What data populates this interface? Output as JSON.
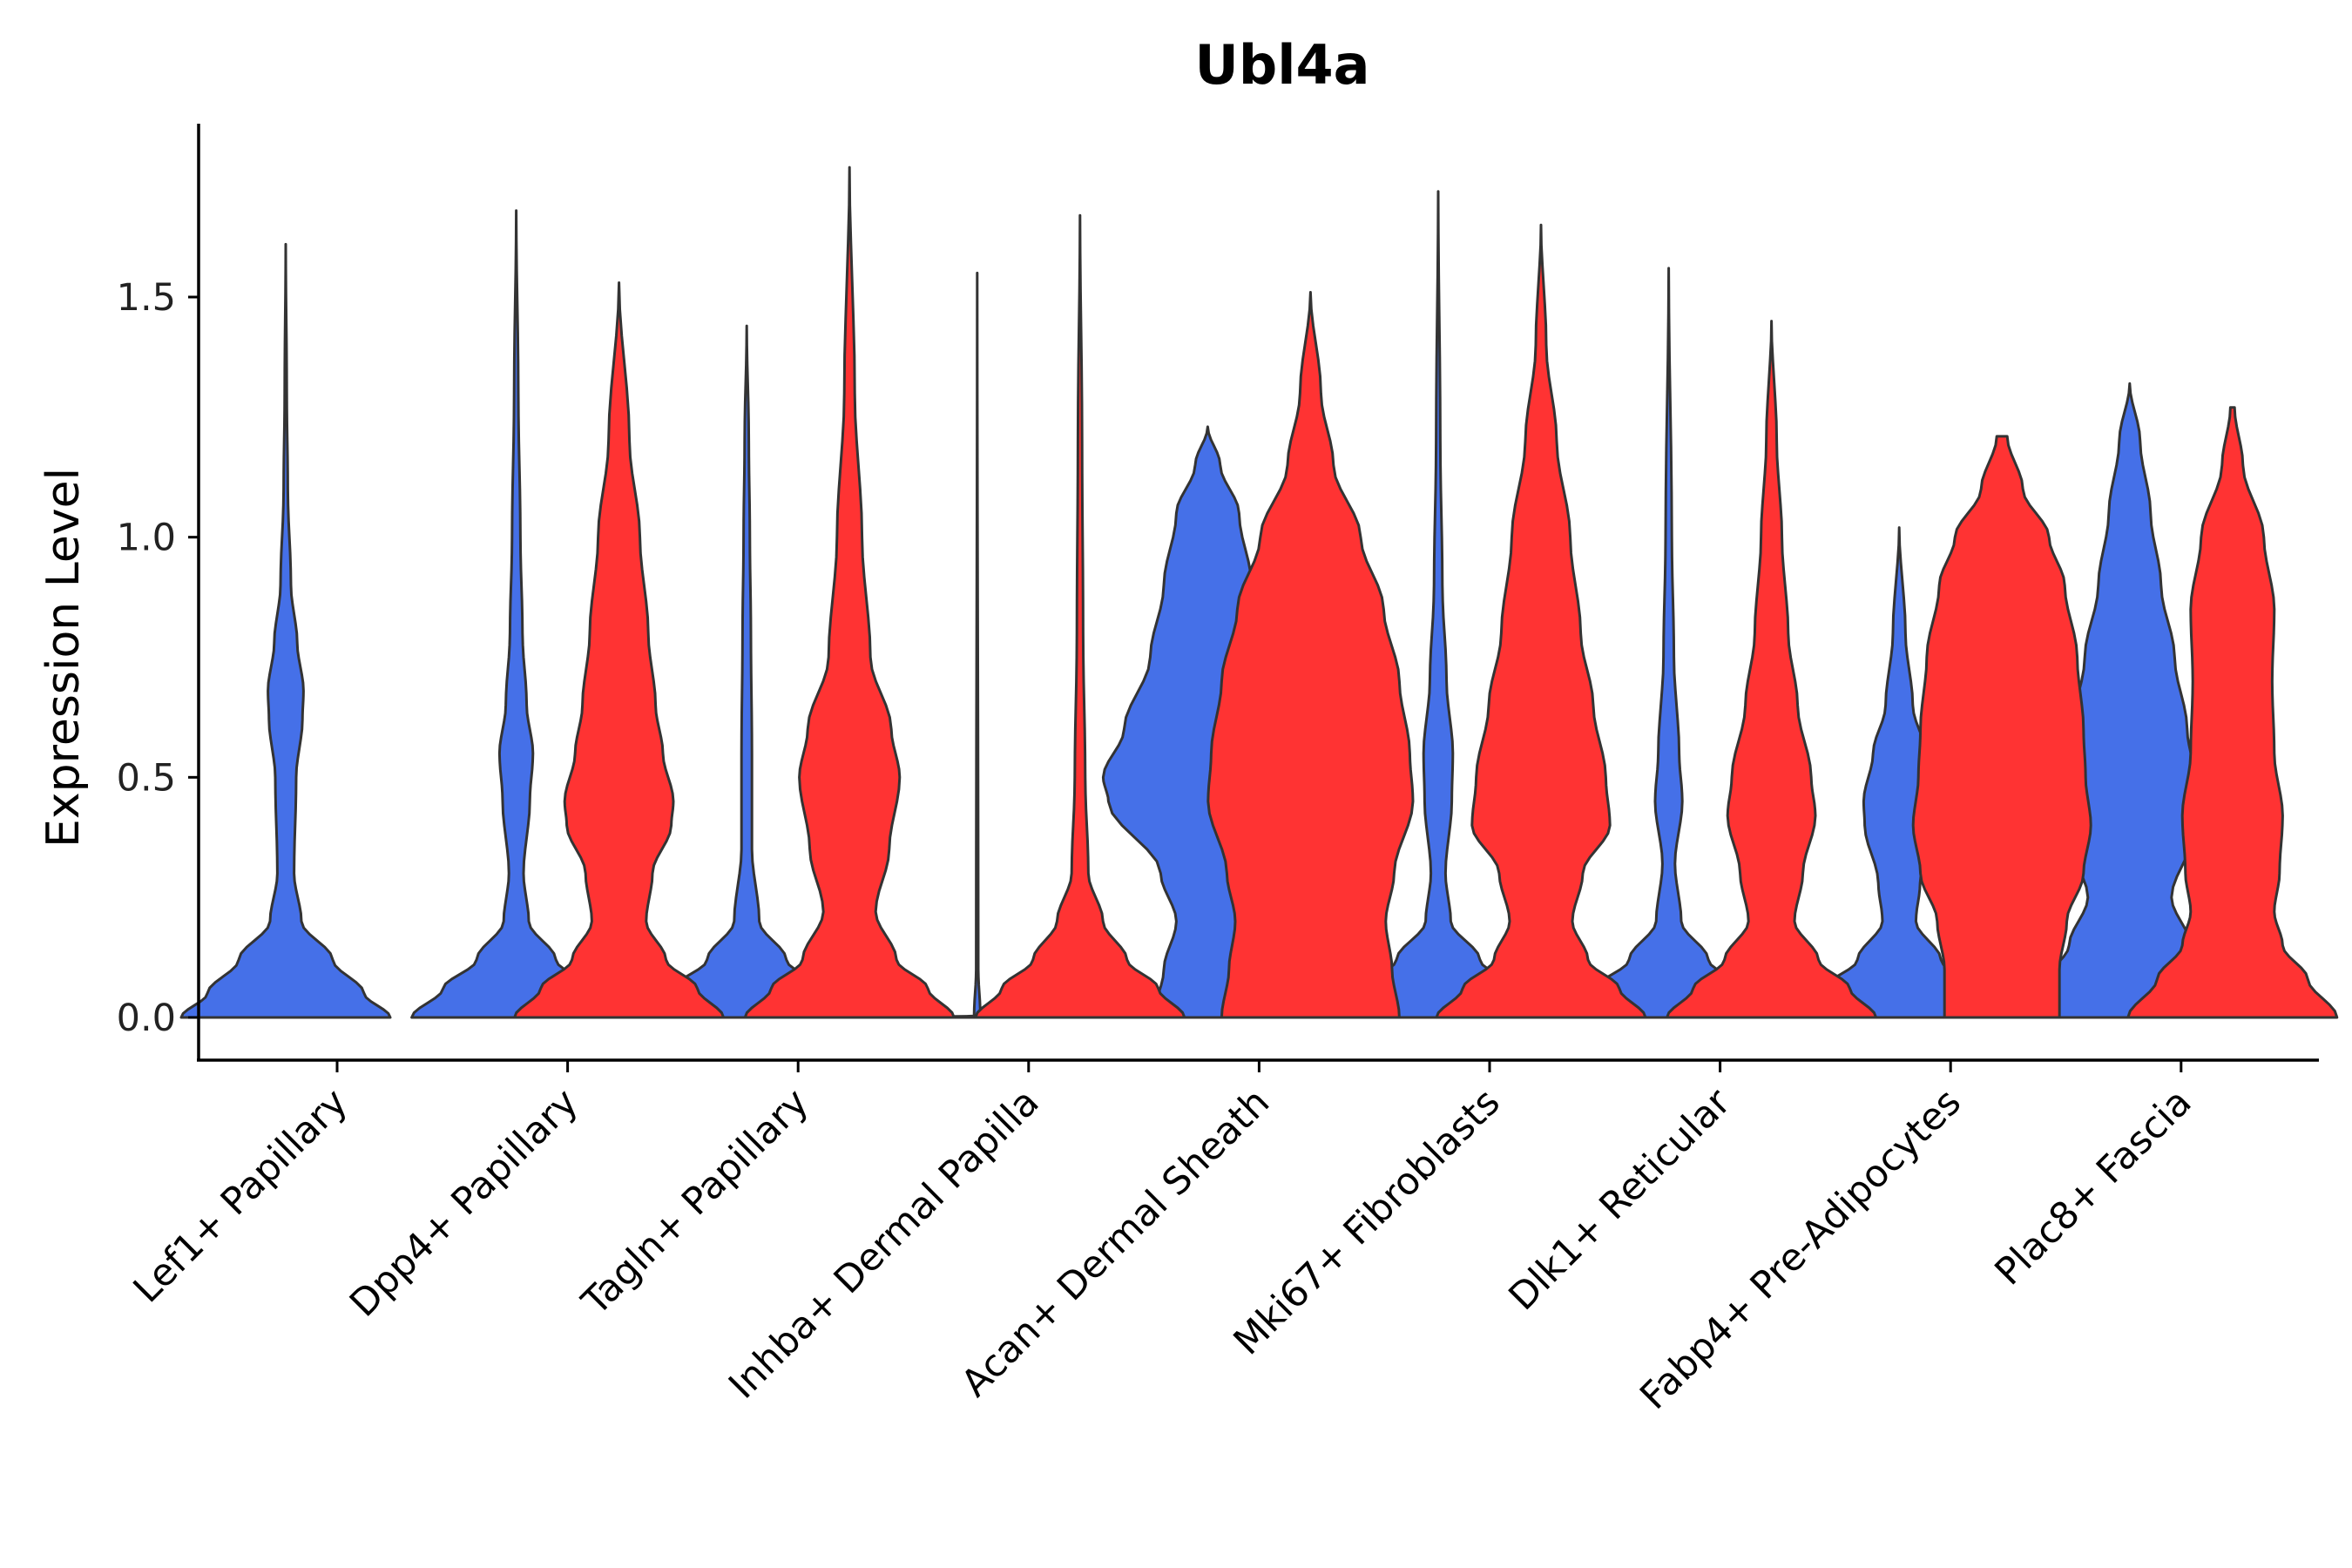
{
  "chart_data": {
    "type": "violin",
    "title": "Ubl4a",
    "xlabel": "",
    "ylabel": "Expression Level",
    "ylim": [
      -0.09,
      1.86
    ],
    "yticks": [
      0.0,
      0.5,
      1.0,
      1.5
    ],
    "ytick_labels": [
      "0.0",
      "0.5",
      "1.0",
      "1.5"
    ],
    "grid": false,
    "legend": "none",
    "colors": {
      "group1": "#4570E8",
      "group2": "#FF3333",
      "outline": "#333333"
    },
    "categories": [
      "Lef1+ Papillary",
      "Dpp4+ Papillary",
      "Tagln+ Papillary",
      "Inhba+ Dermal Papilla",
      "Acan+ Dermal Sheath",
      "Mki67+ Fibroblasts",
      "Dlk1+ Reticular",
      "Fabp4+ Pre-Adipocytes",
      "Plac8+ Fascia"
    ],
    "series": [
      {
        "name": "group1",
        "color": "#4570E8",
        "violins": [
          {
            "category": "Lef1+ Papillary",
            "max": 1.61,
            "profile": [
              [
                0,
                1.0
              ],
              [
                0.05,
                0.75
              ],
              [
                0.12,
                0.45
              ],
              [
                0.2,
                0.15
              ],
              [
                0.3,
                0.08
              ],
              [
                0.5,
                0.1
              ],
              [
                0.62,
                0.16
              ],
              [
                0.68,
                0.17
              ],
              [
                0.78,
                0.11
              ],
              [
                0.9,
                0.05
              ],
              [
                1.1,
                0.02
              ],
              [
                1.3,
                0.01
              ],
              [
                1.61,
                0.0
              ]
            ]
          },
          {
            "category": "Dpp4+ Papillary",
            "max": 1.68,
            "profile": [
              [
                0,
                1.0
              ],
              [
                0.06,
                0.7
              ],
              [
                0.12,
                0.38
              ],
              [
                0.2,
                0.12
              ],
              [
                0.3,
                0.07
              ],
              [
                0.45,
                0.13
              ],
              [
                0.55,
                0.16
              ],
              [
                0.65,
                0.1
              ],
              [
                0.8,
                0.06
              ],
              [
                1.0,
                0.04
              ],
              [
                1.3,
                0.02
              ],
              [
                1.68,
                0.0
              ]
            ]
          },
          {
            "category": "Tagln+ Papillary",
            "max": 1.44,
            "profile": [
              [
                0,
                1.0
              ],
              [
                0.06,
                0.7
              ],
              [
                0.12,
                0.38
              ],
              [
                0.2,
                0.12
              ],
              [
                0.35,
                0.05
              ],
              [
                0.55,
                0.05
              ],
              [
                0.8,
                0.04
              ],
              [
                1.0,
                0.03
              ],
              [
                1.2,
                0.02
              ],
              [
                1.44,
                0.0
              ]
            ]
          },
          {
            "category": "Inhba+ Dermal Papilla",
            "max": 1.55,
            "profile": [
              [
                0,
                1.0
              ],
              [
                0.003,
                0.03
              ],
              [
                0.1,
                0.01
              ],
              [
                1.55,
                0.0
              ]
            ]
          },
          {
            "category": "Acan+ Dermal Sheath",
            "max": 1.23,
            "profile": [
              [
                0,
                0.52
              ],
              [
                0.1,
                0.42
              ],
              [
                0.2,
                0.3
              ],
              [
                0.3,
                0.45
              ],
              [
                0.45,
                0.95
              ],
              [
                0.5,
                1.0
              ],
              [
                0.6,
                0.8
              ],
              [
                0.75,
                0.55
              ],
              [
                0.9,
                0.42
              ],
              [
                1.05,
                0.3
              ],
              [
                1.15,
                0.12
              ],
              [
                1.23,
                0.0
              ]
            ]
          },
          {
            "category": "Mki67+ Fibroblasts",
            "max": 1.72,
            "profile": [
              [
                0,
                1.0
              ],
              [
                0.06,
                0.72
              ],
              [
                0.12,
                0.4
              ],
              [
                0.2,
                0.12
              ],
              [
                0.3,
                0.07
              ],
              [
                0.45,
                0.13
              ],
              [
                0.55,
                0.14
              ],
              [
                0.7,
                0.08
              ],
              [
                0.9,
                0.04
              ],
              [
                1.2,
                0.02
              ],
              [
                1.72,
                0.0
              ]
            ]
          },
          {
            "category": "Dlk1+ Reticular",
            "max": 1.56,
            "profile": [
              [
                0,
                1.0
              ],
              [
                0.06,
                0.7
              ],
              [
                0.12,
                0.38
              ],
              [
                0.2,
                0.12
              ],
              [
                0.32,
                0.06
              ],
              [
                0.45,
                0.13
              ],
              [
                0.55,
                0.1
              ],
              [
                0.75,
                0.05
              ],
              [
                1.0,
                0.03
              ],
              [
                1.56,
                0.0
              ]
            ]
          },
          {
            "category": "Fabp4+ Pre-Adipocytes",
            "max": 1.02,
            "profile": [
              [
                0,
                1.0
              ],
              [
                0.06,
                0.72
              ],
              [
                0.12,
                0.4
              ],
              [
                0.2,
                0.16
              ],
              [
                0.28,
                0.2
              ],
              [
                0.4,
                0.33
              ],
              [
                0.45,
                0.34
              ],
              [
                0.55,
                0.25
              ],
              [
                0.65,
                0.13
              ],
              [
                0.8,
                0.06
              ],
              [
                1.02,
                0.0
              ]
            ]
          },
          {
            "category": "Plac8+ Fascia",
            "max": 1.32,
            "profile": [
              [
                0,
                1.0
              ],
              [
                0.08,
                0.78
              ],
              [
                0.15,
                0.58
              ],
              [
                0.25,
                0.4
              ],
              [
                0.38,
                0.6
              ],
              [
                0.5,
                0.62
              ],
              [
                0.6,
                0.55
              ],
              [
                0.75,
                0.43
              ],
              [
                0.9,
                0.3
              ],
              [
                1.05,
                0.2
              ],
              [
                1.2,
                0.1
              ],
              [
                1.32,
                0.0
              ]
            ]
          }
        ]
      },
      {
        "name": "group2",
        "color": "#FF3333",
        "violins": [
          {
            "category": "Dpp4+ Papillary",
            "max": 1.53,
            "profile": [
              [
                0,
                1.0
              ],
              [
                0.06,
                0.75
              ],
              [
                0.12,
                0.45
              ],
              [
                0.2,
                0.26
              ],
              [
                0.3,
                0.32
              ],
              [
                0.4,
                0.5
              ],
              [
                0.45,
                0.52
              ],
              [
                0.55,
                0.42
              ],
              [
                0.65,
                0.35
              ],
              [
                0.8,
                0.28
              ],
              [
                1.0,
                0.2
              ],
              [
                1.2,
                0.1
              ],
              [
                1.53,
                0.0
              ]
            ]
          },
          {
            "category": "Tagln+ Papillary",
            "max": 1.77,
            "profile": [
              [
                0,
                1.0
              ],
              [
                0.06,
                0.75
              ],
              [
                0.12,
                0.45
              ],
              [
                0.22,
                0.25
              ],
              [
                0.35,
                0.38
              ],
              [
                0.5,
                0.48
              ],
              [
                0.6,
                0.4
              ],
              [
                0.75,
                0.2
              ],
              [
                1.0,
                0.12
              ],
              [
                1.3,
                0.05
              ],
              [
                1.77,
                0.0
              ]
            ]
          },
          {
            "category": "Inhba+ Dermal Papilla",
            "max": 1.67,
            "profile": [
              [
                0,
                1.0
              ],
              [
                0.06,
                0.75
              ],
              [
                0.12,
                0.45
              ],
              [
                0.2,
                0.22
              ],
              [
                0.3,
                0.08
              ],
              [
                0.5,
                0.05
              ],
              [
                0.8,
                0.03
              ],
              [
                1.2,
                0.02
              ],
              [
                1.67,
                0.0
              ]
            ]
          },
          {
            "category": "Acan+ Dermal Sheath",
            "max": 1.51,
            "profile": [
              [
                0,
                0.85
              ],
              [
                0.1,
                0.78
              ],
              [
                0.2,
                0.72
              ],
              [
                0.3,
                0.8
              ],
              [
                0.45,
                0.98
              ],
              [
                0.55,
                0.95
              ],
              [
                0.7,
                0.85
              ],
              [
                0.85,
                0.7
              ],
              [
                1.0,
                0.48
              ],
              [
                1.15,
                0.22
              ],
              [
                1.3,
                0.1
              ],
              [
                1.51,
                0.0
              ]
            ]
          },
          {
            "category": "Mki67+ Fibroblasts",
            "max": 1.65,
            "profile": [
              [
                0,
                1.0
              ],
              [
                0.06,
                0.75
              ],
              [
                0.12,
                0.45
              ],
              [
                0.2,
                0.3
              ],
              [
                0.3,
                0.4
              ],
              [
                0.4,
                0.66
              ],
              [
                0.5,
                0.62
              ],
              [
                0.65,
                0.5
              ],
              [
                0.8,
                0.38
              ],
              [
                1.0,
                0.28
              ],
              [
                1.2,
                0.15
              ],
              [
                1.4,
                0.05
              ],
              [
                1.65,
                0.0
              ]
            ]
          },
          {
            "category": "Dlk1+ Reticular",
            "max": 1.45,
            "profile": [
              [
                0,
                1.0
              ],
              [
                0.06,
                0.75
              ],
              [
                0.12,
                0.45
              ],
              [
                0.2,
                0.22
              ],
              [
                0.3,
                0.3
              ],
              [
                0.42,
                0.42
              ],
              [
                0.5,
                0.38
              ],
              [
                0.65,
                0.25
              ],
              [
                0.8,
                0.16
              ],
              [
                1.0,
                0.1
              ],
              [
                1.2,
                0.05
              ],
              [
                1.45,
                0.0
              ]
            ]
          },
          {
            "category": "Fabp4+ Pre-Adipocytes",
            "max": 1.21,
            "profile": [
              [
                0,
                0.55
              ],
              [
                0.1,
                0.55
              ],
              [
                0.2,
                0.62
              ],
              [
                0.3,
                0.78
              ],
              [
                0.4,
                0.85
              ],
              [
                0.5,
                0.8
              ],
              [
                0.6,
                0.78
              ],
              [
                0.75,
                0.72
              ],
              [
                0.9,
                0.6
              ],
              [
                1.0,
                0.45
              ],
              [
                1.1,
                0.2
              ],
              [
                1.21,
                0.05
              ]
            ]
          },
          {
            "category": "Plac8+ Fascia",
            "max": 1.27,
            "profile": [
              [
                0,
                1.0
              ],
              [
                0.08,
                0.72
              ],
              [
                0.15,
                0.48
              ],
              [
                0.22,
                0.4
              ],
              [
                0.3,
                0.45
              ],
              [
                0.42,
                0.48
              ],
              [
                0.55,
                0.4
              ],
              [
                0.7,
                0.38
              ],
              [
                0.85,
                0.4
              ],
              [
                1.0,
                0.3
              ],
              [
                1.15,
                0.1
              ],
              [
                1.27,
                0.02
              ]
            ]
          }
        ]
      }
    ]
  }
}
